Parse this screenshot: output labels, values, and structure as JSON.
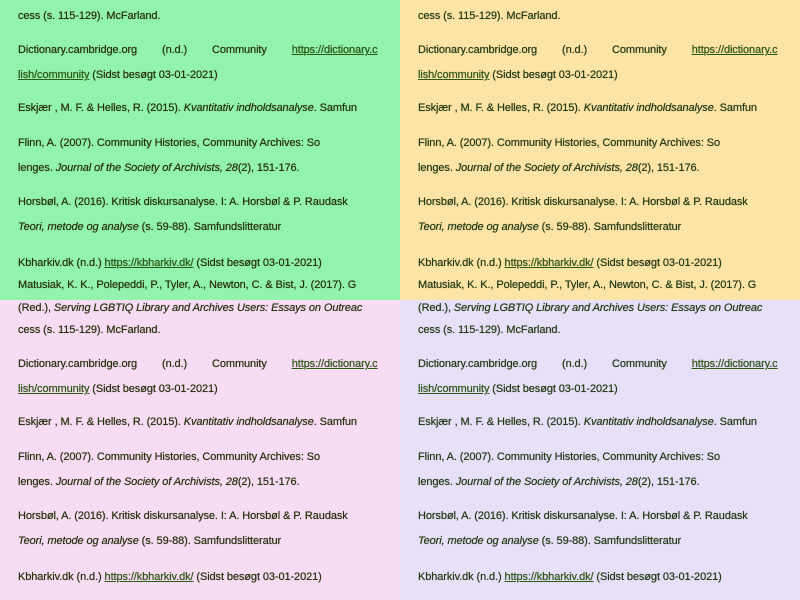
{
  "colors": {
    "top_left_bg": "#92f3ac",
    "top_right_bg": "#fce3a6",
    "bottom_left_bg": "#f8dcf3",
    "bottom_right_bg": "#e7e0f8",
    "text": "#26300c",
    "link": "#2a5a14"
  },
  "reference_lines": [
    [
      {
        "t": "cess (s. 115-129). McFarland."
      }
    ],
    [
      {
        "t": "Dictionary.cambridge.org (n.d.) Community ",
        "s": "wide"
      },
      {
        "t": "https://dictionary.c",
        "s": "lnk"
      }
    ],
    [
      {
        "t": "lish/community",
        "s": "lnk"
      },
      {
        "t": " (Sidst besøgt 03-01-2021)"
      }
    ],
    [
      {
        "t": "Eskjær , M. F. & Helles, R. (2015). "
      },
      {
        "t": "Kvantitativ indholdsanalyse",
        "s": "it"
      },
      {
        "t": ". Samfun"
      }
    ],
    [
      {
        "t": "Flinn, A. (2007). Community Histories, Community Archives: So"
      }
    ],
    [
      {
        "t": "lenges. "
      },
      {
        "t": "Journal of the Society of Archivists, 28",
        "s": "it"
      },
      {
        "t": "(2), 151-176."
      }
    ],
    [
      {
        "t": "Horsbøl, A. (2016). Kritisk diskursanalyse. I: A. Horsbøl & P. Raudask"
      }
    ],
    [
      {
        "t": "Teori, metode og analyse",
        "s": "it"
      },
      {
        "t": " (s. 59-88). Samfundslitteratur"
      }
    ],
    [
      {
        "t": "Kbharkiv.dk (n.d.) "
      },
      {
        "t": "https://kbharkiv.dk/",
        "s": "lnk"
      },
      {
        "t": " (Sidst besøgt 03-01-2021)"
      }
    ]
  ],
  "matusiak_line": [
    {
      "t": "Matusiak, K. K., Polepeddi, P., Tyler, A., Newton, C. & Bist, J. (2017). G"
    }
  ],
  "red_line": [
    {
      "t": "(Red.), "
    },
    {
      "t": "Serving LGBTIQ Library and Archives Users: Essays on Outreac",
      "s": "it"
    }
  ]
}
